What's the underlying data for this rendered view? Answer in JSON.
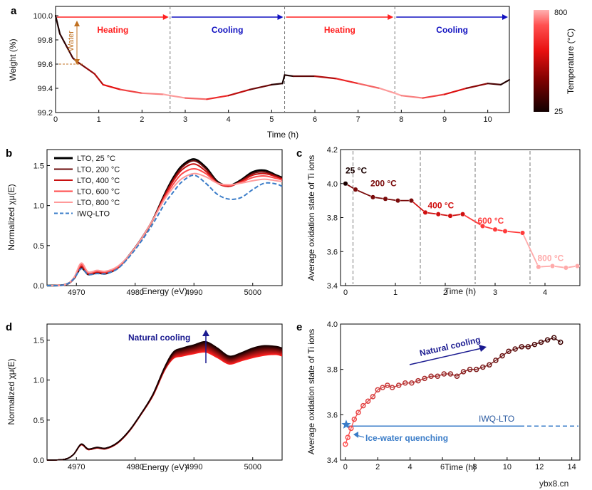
{
  "panels": {
    "a": {
      "label": "a",
      "xlabel": "Time (h)",
      "ylabel": "Weight (%)",
      "xlim": [
        0,
        10.5
      ],
      "ylim": [
        99.2,
        100.0
      ],
      "xticks": [
        "0",
        "1",
        "2",
        "3",
        "4",
        "5",
        "6",
        "7",
        "8",
        "9",
        "10"
      ],
      "yticks": [
        "99.2",
        "99.4",
        "99.6",
        "99.8",
        "100.0"
      ],
      "phases": [
        "Heating",
        "Cooling",
        "Heating",
        "Cooling"
      ],
      "water_label": "Water",
      "colorbar_label": "Temperature (°C)",
      "colorbar_max": "800",
      "colorbar_min": "25"
    },
    "b": {
      "label": "b",
      "xlabel": "Energy (eV)",
      "ylabel": "Normalized χμ(E)",
      "xticks": [
        "4970",
        "4980",
        "4990",
        "5000"
      ],
      "yticks": [
        "0.0",
        "0.5",
        "1.0",
        "1.5"
      ],
      "legend": [
        "LTO, 25 °C",
        "LTO, 200 °C",
        "LTO, 400 °C",
        "LTO, 600 °C",
        "LTO, 800 °C",
        "IWQ-LTO"
      ]
    },
    "c": {
      "label": "c",
      "xlabel": "Time (h)",
      "ylabel": "Average oxidation state of Ti ions",
      "xticks": [
        "0",
        "1",
        "2",
        "3",
        "4"
      ],
      "yticks": [
        "3.4",
        "3.6",
        "3.8",
        "4.0",
        "4.2"
      ],
      "annotations": [
        "25 °C",
        "200 °C",
        "400 °C",
        "600 °C",
        "800 °C"
      ]
    },
    "d": {
      "label": "d",
      "xlabel": "Energy (eV)",
      "ylabel": "Normalized χμ(E)",
      "xticks": [
        "4970",
        "4980",
        "4990",
        "5000"
      ],
      "yticks": [
        "0.0",
        "0.5",
        "1.0",
        "1.5"
      ],
      "arrow_label": "Natural cooling"
    },
    "e": {
      "label": "e",
      "xlabel": "Time (h)",
      "ylabel": "Average oxidation state of Ti ions",
      "xticks": [
        "0",
        "2",
        "4",
        "6",
        "8",
        "10",
        "12",
        "14"
      ],
      "yticks": [
        "3.4",
        "3.6",
        "3.8",
        "4.0"
      ],
      "arrow_label": "Natural cooling",
      "iwq_label": "IWQ-LTO",
      "quench_label": "Ice-water quenching"
    }
  },
  "watermark": "ybx8.cn",
  "colors": {
    "heat": "#ff2020",
    "cool": "#1010c0",
    "iwq": "#3a7cc8",
    "dark": "#1a0000"
  },
  "chart_data": [
    {
      "type": "line",
      "panel": "a",
      "xlabel": "Time (h)",
      "ylabel": "Weight (%)",
      "xlim": [
        0,
        10.5
      ],
      "ylim": [
        99.2,
        100.0
      ],
      "x": [
        0,
        0.1,
        0.25,
        0.4,
        0.5,
        0.7,
        0.9,
        1.1,
        1.5,
        2.0,
        2.5,
        2.65,
        3.0,
        3.5,
        4.0,
        4.5,
        5.0,
        5.25,
        5.3,
        5.5,
        6.0,
        6.5,
        7.0,
        7.5,
        7.85,
        8.0,
        8.5,
        9.0,
        9.5,
        10.0,
        10.3,
        10.5
      ],
      "y": [
        100.0,
        99.85,
        99.75,
        99.65,
        99.62,
        99.57,
        99.52,
        99.43,
        99.39,
        99.36,
        99.35,
        99.34,
        99.32,
        99.31,
        99.34,
        99.39,
        99.43,
        99.44,
        99.51,
        99.5,
        99.5,
        99.48,
        99.44,
        99.4,
        99.36,
        99.34,
        99.32,
        99.35,
        99.4,
        99.44,
        99.43,
        99.47
      ],
      "phase_boundaries": [
        2.65,
        5.3,
        7.85
      ]
    },
    {
      "type": "line",
      "panel": "b",
      "xlabel": "Energy (eV)",
      "ylabel": "Normalized χμ(E)",
      "xlim": [
        4965,
        5005
      ],
      "ylim": [
        0,
        1.7
      ],
      "x": [
        4965,
        4968,
        4969.5,
        4970.8,
        4972,
        4973.5,
        4975,
        4977,
        4979,
        4981,
        4983,
        4985,
        4986.5,
        4988,
        4990,
        4992,
        4994,
        4996,
        4998,
        5000,
        5002,
        5004,
        5005
      ],
      "series": [
        {
          "name": "LTO, 25 °C",
          "values": [
            0.0,
            0.01,
            0.08,
            0.22,
            0.14,
            0.16,
            0.15,
            0.22,
            0.38,
            0.58,
            0.82,
            1.14,
            1.35,
            1.5,
            1.58,
            1.48,
            1.3,
            1.25,
            1.32,
            1.42,
            1.44,
            1.38,
            1.35
          ]
        },
        {
          "name": "LTO, 200 °C",
          "values": [
            0.0,
            0.01,
            0.08,
            0.23,
            0.14,
            0.16,
            0.15,
            0.22,
            0.38,
            0.58,
            0.82,
            1.13,
            1.33,
            1.48,
            1.56,
            1.46,
            1.29,
            1.24,
            1.31,
            1.4,
            1.42,
            1.37,
            1.34
          ]
        },
        {
          "name": "LTO, 400 °C",
          "values": [
            0.0,
            0.01,
            0.08,
            0.24,
            0.15,
            0.17,
            0.16,
            0.22,
            0.38,
            0.58,
            0.82,
            1.12,
            1.31,
            1.45,
            1.52,
            1.43,
            1.28,
            1.24,
            1.3,
            1.38,
            1.4,
            1.36,
            1.33
          ]
        },
        {
          "name": "LTO, 600 °C",
          "values": [
            0.0,
            0.01,
            0.09,
            0.26,
            0.16,
            0.18,
            0.17,
            0.23,
            0.38,
            0.58,
            0.82,
            1.1,
            1.27,
            1.4,
            1.46,
            1.4,
            1.28,
            1.25,
            1.29,
            1.35,
            1.37,
            1.34,
            1.32
          ]
        },
        {
          "name": "LTO, 800 °C",
          "values": [
            0.0,
            0.01,
            0.09,
            0.28,
            0.17,
            0.19,
            0.18,
            0.24,
            0.38,
            0.58,
            0.82,
            1.08,
            1.23,
            1.34,
            1.4,
            1.36,
            1.28,
            1.26,
            1.28,
            1.31,
            1.33,
            1.31,
            1.3
          ]
        },
        {
          "name": "IWQ-LTO",
          "values": [
            0.0,
            0.01,
            0.08,
            0.21,
            0.14,
            0.15,
            0.15,
            0.21,
            0.36,
            0.55,
            0.77,
            1.02,
            1.17,
            1.3,
            1.38,
            1.28,
            1.14,
            1.08,
            1.1,
            1.2,
            1.28,
            1.27,
            1.24
          ]
        }
      ]
    },
    {
      "type": "line",
      "panel": "c",
      "xlabel": "Time (h)",
      "ylabel": "Average oxidation state of Ti ions",
      "xlim": [
        -0.1,
        4.7
      ],
      "ylim": [
        3.4,
        4.2
      ],
      "x": [
        0,
        0.2,
        0.55,
        0.8,
        1.05,
        1.32,
        1.6,
        1.86,
        2.1,
        2.35,
        2.75,
        3.0,
        3.2,
        3.55,
        3.87,
        4.15,
        4.42,
        4.65
      ],
      "y": [
        4.0,
        3.965,
        3.92,
        3.91,
        3.9,
        3.9,
        3.83,
        3.82,
        3.81,
        3.82,
        3.75,
        3.73,
        3.72,
        3.71,
        3.51,
        3.515,
        3.505,
        3.515
      ],
      "temperature_boundaries": [
        0.15,
        1.5,
        2.6,
        3.7
      ]
    },
    {
      "type": "line",
      "panel": "d",
      "xlabel": "Energy (eV)",
      "ylabel": "Normalized χμ(E)",
      "xlim": [
        4965,
        5005
      ],
      "ylim": [
        0,
        1.7
      ],
      "x": [
        4965,
        4968,
        4969.5,
        4970.8,
        4972,
        4973.5,
        4975,
        4977,
        4979,
        4981,
        4983,
        4985,
        4986.5,
        4988,
        4990,
        4992,
        4994,
        4996,
        4998,
        5000,
        5002,
        5004,
        5005
      ],
      "series": [
        {
          "name": "",
          "values": [
            0.0,
            0.01,
            0.07,
            0.19,
            0.13,
            0.15,
            0.14,
            0.21,
            0.36,
            0.57,
            0.8,
            1.12,
            1.27,
            1.3,
            1.33,
            1.35,
            1.28,
            1.2,
            1.24,
            1.28,
            1.31,
            1.32,
            1.3
          ]
        },
        {
          "name": "",
          "values": [
            0.0,
            0.01,
            0.07,
            0.2,
            0.14,
            0.16,
            0.15,
            0.22,
            0.37,
            0.58,
            0.81,
            1.14,
            1.31,
            1.35,
            1.39,
            1.42,
            1.34,
            1.25,
            1.29,
            1.34,
            1.37,
            1.37,
            1.35
          ]
        },
        {
          "name": "",
          "values": [
            0.0,
            0.01,
            0.07,
            0.2,
            0.14,
            0.16,
            0.15,
            0.22,
            0.37,
            0.58,
            0.82,
            1.16,
            1.35,
            1.4,
            1.44,
            1.48,
            1.4,
            1.3,
            1.34,
            1.4,
            1.43,
            1.42,
            1.4
          ]
        }
      ]
    },
    {
      "type": "scatter",
      "panel": "e",
      "xlabel": "Time (h)",
      "ylabel": "Average oxidation state of Ti ions",
      "xlim": [
        -0.3,
        14.5
      ],
      "ylim": [
        3.4,
        4.0
      ],
      "x": [
        0,
        0.15,
        0.35,
        0.55,
        0.8,
        1.1,
        1.4,
        1.7,
        2.0,
        2.3,
        2.6,
        2.9,
        3.3,
        3.7,
        4.1,
        4.5,
        4.9,
        5.3,
        5.7,
        6.1,
        6.5,
        6.9,
        7.3,
        7.7,
        8.1,
        8.5,
        8.9,
        9.3,
        9.7,
        10.1,
        10.5,
        10.9,
        11.3,
        11.7,
        12.1,
        12.5,
        12.9,
        13.3
      ],
      "y": [
        3.47,
        3.5,
        3.54,
        3.58,
        3.61,
        3.64,
        3.66,
        3.68,
        3.71,
        3.72,
        3.73,
        3.72,
        3.73,
        3.74,
        3.74,
        3.75,
        3.76,
        3.77,
        3.77,
        3.78,
        3.78,
        3.77,
        3.79,
        3.8,
        3.8,
        3.81,
        3.82,
        3.84,
        3.86,
        3.88,
        3.89,
        3.9,
        3.9,
        3.91,
        3.92,
        3.93,
        3.94,
        3.92
      ],
      "iwq_level": 3.55
    }
  ]
}
